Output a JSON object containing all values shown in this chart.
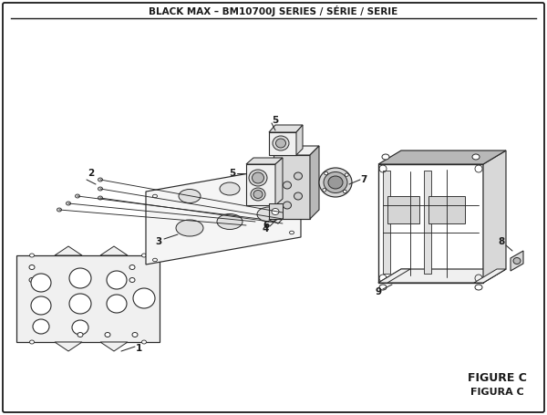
{
  "title": "BLACK MAX – BM10700J SERIES / SÉRIE / SERIE",
  "figure_label": "FIGURE C",
  "figure_label2": "FIGURA C",
  "bg_color": "#ffffff",
  "border_color": "#1a1a1a",
  "line_color": "#2a2a2a",
  "fill_light": "#f0f0f0",
  "fill_mid": "#d8d8d8",
  "fill_dark": "#b8b8b8"
}
